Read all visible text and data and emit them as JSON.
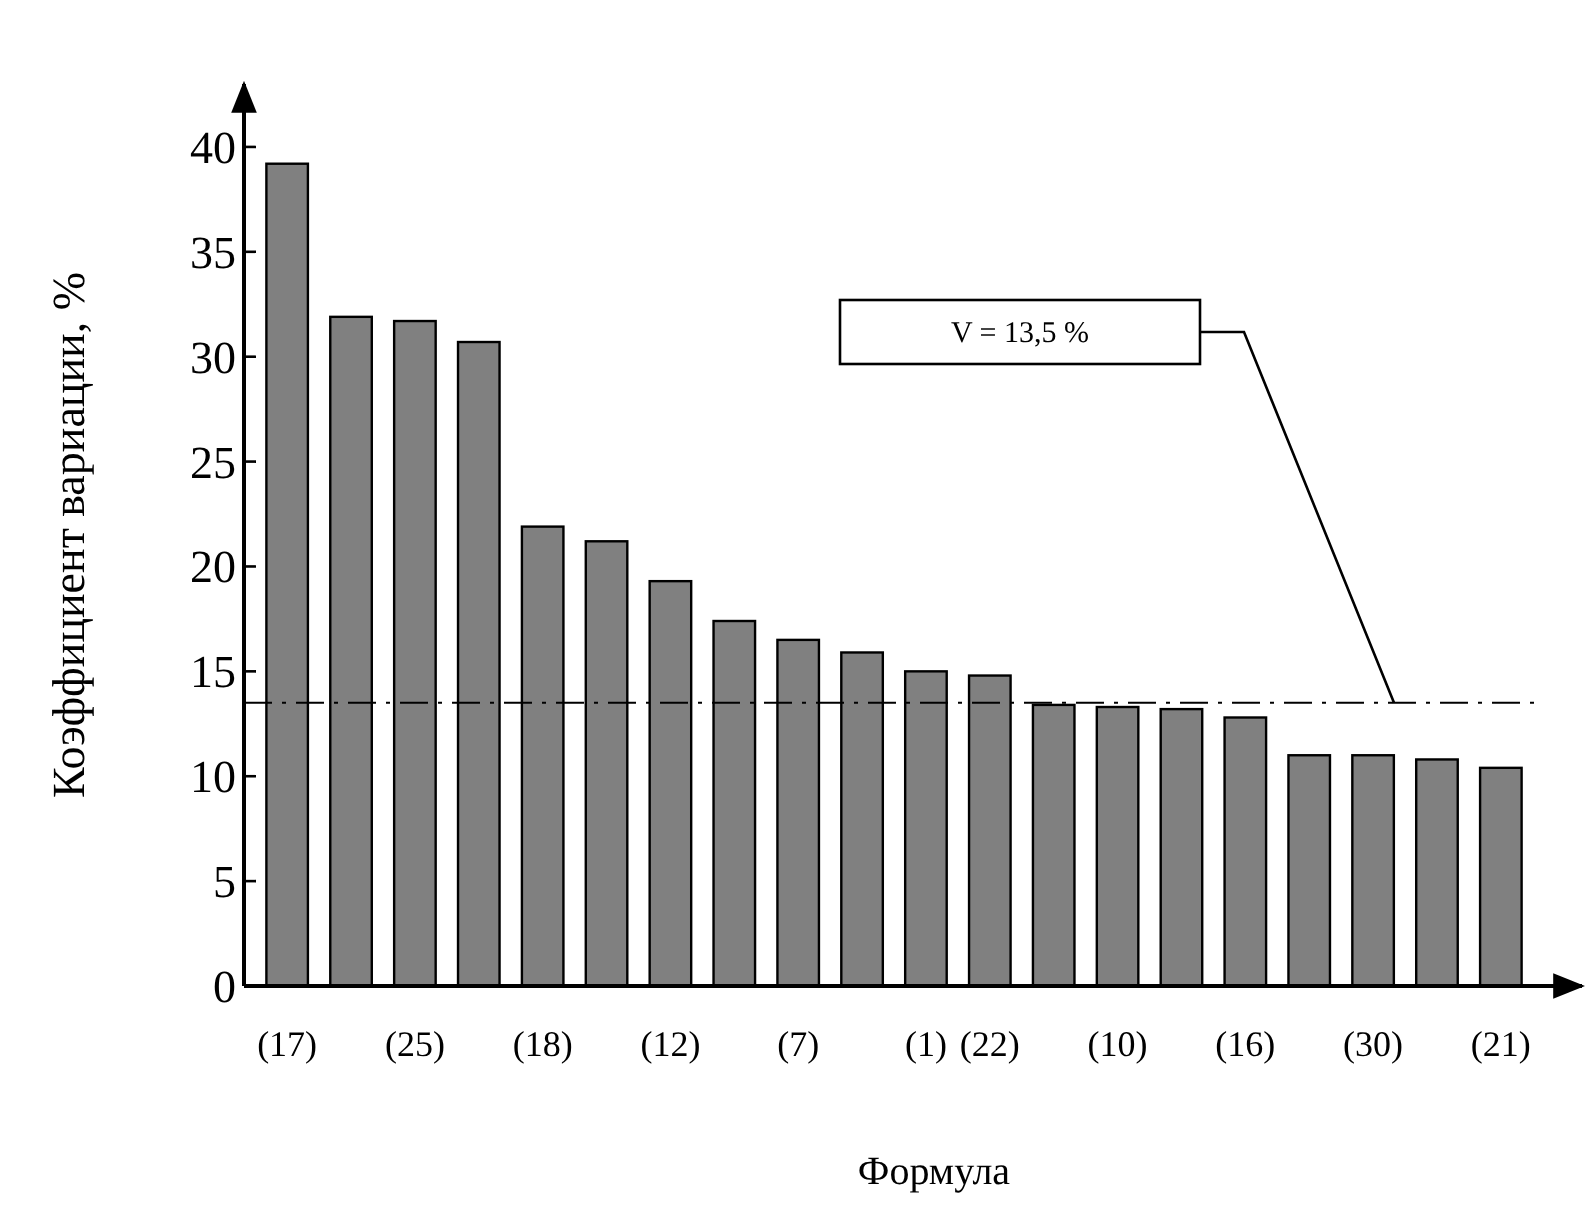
{
  "chart_data": {
    "type": "bar",
    "xlabel": "Формула",
    "ylabel": "Коэффициент вариации, %",
    "categories": [
      "(17)",
      null,
      "(25)",
      null,
      "(18)",
      null,
      "(12)",
      null,
      "(7)",
      null,
      "(1)",
      "(22)",
      null,
      "(10)",
      null,
      "(16)",
      null,
      "(30)",
      null,
      "(21)"
    ],
    "values": [
      39.2,
      31.9,
      31.7,
      30.7,
      21.9,
      21.2,
      19.3,
      17.4,
      16.5,
      15.9,
      15.0,
      14.8,
      13.4,
      13.3,
      13.2,
      12.8,
      11.0,
      11.0,
      10.8,
      10.4
    ],
    "color": "#808080",
    "ylim": [
      0,
      43
    ],
    "yticks": [
      0,
      5,
      10,
      15,
      20,
      25,
      30,
      35,
      40
    ],
    "grid": false,
    "ref_lines": [
      {
        "axis": "y",
        "value": 13.5,
        "label": "V = 13,5 %",
        "line_style": "dashdot",
        "color": "#000000"
      }
    ]
  }
}
